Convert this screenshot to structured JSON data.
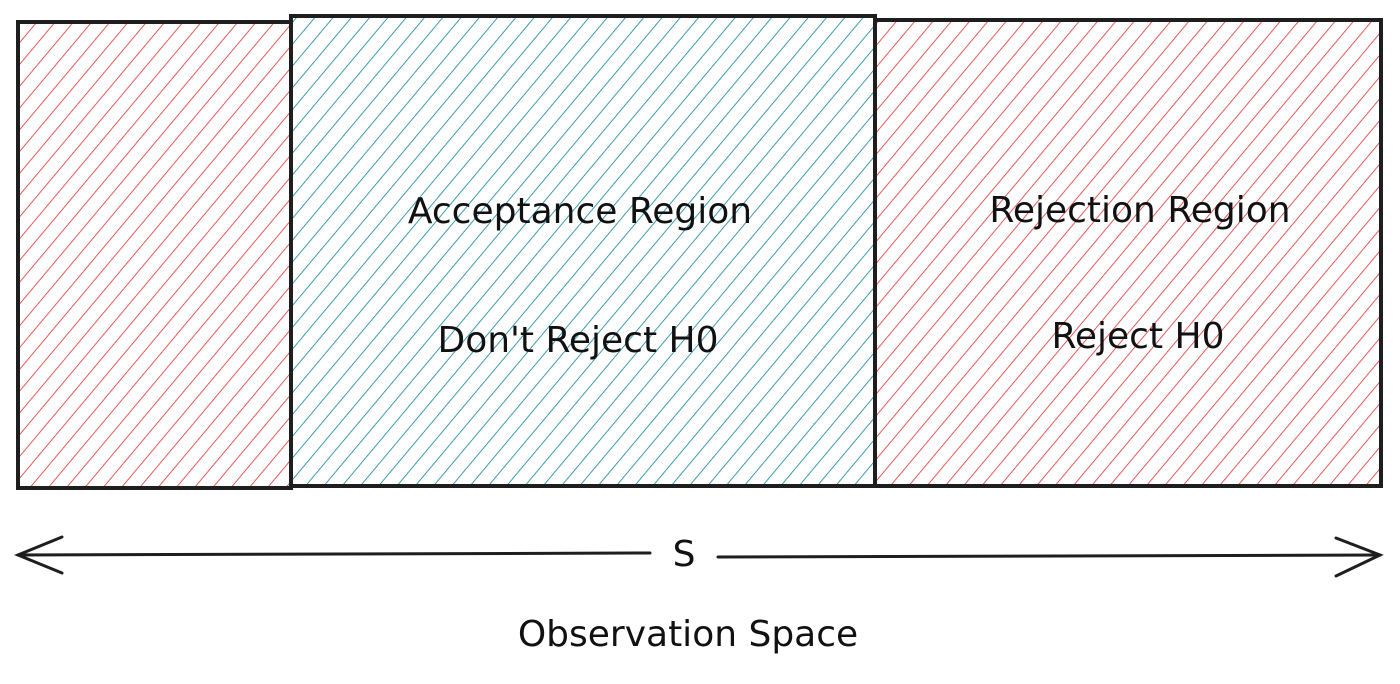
{
  "regions": [
    {
      "name": "left-rejection",
      "fill": "#e03131",
      "title": "",
      "subtitle": ""
    },
    {
      "name": "acceptance",
      "fill": "#0c8599",
      "title": "Acceptance Region",
      "subtitle": "Don't Reject H0"
    },
    {
      "name": "right-rejection",
      "fill": "#e03131",
      "title": "Rejection Region",
      "subtitle": "Reject H0"
    }
  ],
  "axis": {
    "symbol": "S",
    "caption": "Observation Space"
  },
  "colors": {
    "stroke": "#1e1e1e",
    "rejection": "#e03131",
    "acceptance": "#0c8599"
  }
}
